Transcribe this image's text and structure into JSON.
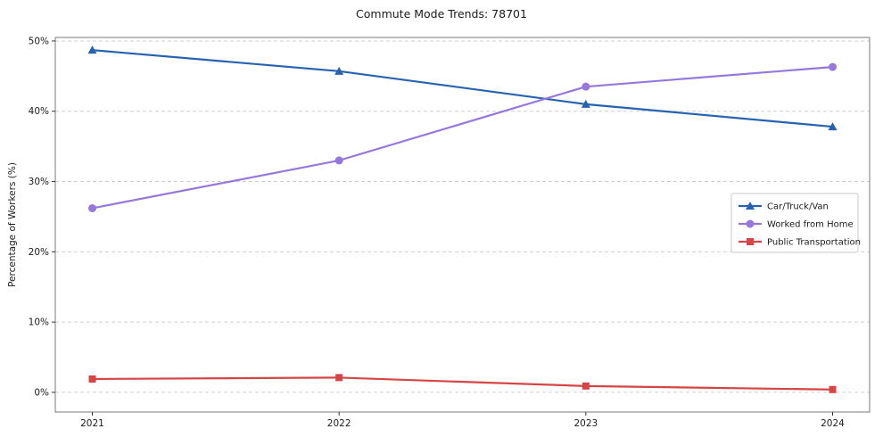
{
  "chart_data": {
    "type": "line",
    "title": "Commute Mode Trends: 78701",
    "xlabel": "",
    "ylabel": "Percentage of Workers (%)",
    "x": [
      2021,
      2022,
      2023,
      2024
    ],
    "x_tick_labels": [
      "2021",
      "2022",
      "2023",
      "2024"
    ],
    "y_ticks": [
      0,
      10,
      20,
      30,
      40,
      50
    ],
    "y_tick_suffix": "%",
    "xlim": [
      2020.85,
      2024.15
    ],
    "ylim": [
      -2.8,
      50.5
    ],
    "grid": true,
    "grid_style": "dashed-horizontal",
    "legend_position": "center-right",
    "series": [
      {
        "name": "Car/Truck/Van",
        "marker": "triangle",
        "color": "#2563b0",
        "values": [
          48.7,
          45.7,
          41.0,
          37.8
        ]
      },
      {
        "name": "Worked from Home",
        "marker": "circle",
        "color": "#9678dd",
        "values": [
          26.2,
          33.0,
          43.5,
          46.3
        ]
      },
      {
        "name": "Public Transportation",
        "marker": "square",
        "color": "#d64545",
        "values": [
          1.9,
          2.1,
          0.9,
          0.4
        ]
      }
    ],
    "colors": {
      "gridline": "#cfcfcf",
      "plot_border": "#7a7a7a",
      "tick_text": "#1a1a1a",
      "legend_border": "#c9c9c9",
      "legend_bg": "#ffffff"
    }
  }
}
